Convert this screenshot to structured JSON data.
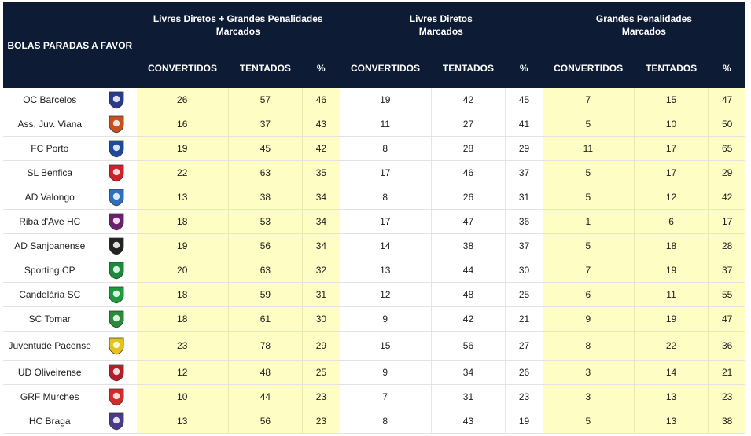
{
  "header": {
    "corner": "BOLAS PARADAS A FAVOR",
    "groups": [
      {
        "line1": "Livres Diretos + Grandes Penalidades",
        "line2": "Marcados"
      },
      {
        "line1": "Livres Diretos",
        "line2": "Marcados"
      },
      {
        "line1": "Grandes Penalidades",
        "line2": "Marcados"
      }
    ],
    "sub": {
      "conv": "CONVERTIDOS",
      "tent": "TENTADOS",
      "pct": "%"
    }
  },
  "chart_data": {
    "type": "table",
    "title": "BOLAS PARADAS A FAVOR",
    "rows": [
      {
        "team": "OC Barcelos",
        "crest": "oc-barcelos-crest",
        "color": "#2a3a8c",
        "total": [
          26,
          57,
          46
        ],
        "ld": [
          19,
          42,
          45
        ],
        "gp": [
          7,
          15,
          47
        ]
      },
      {
        "team": "Ass. Juv. Viana",
        "crest": "aj-viana-crest",
        "color": "#c8501e",
        "total": [
          16,
          37,
          43
        ],
        "ld": [
          11,
          27,
          41
        ],
        "gp": [
          5,
          10,
          50
        ]
      },
      {
        "team": "FC Porto",
        "crest": "fc-porto-crest",
        "color": "#1c4aa0",
        "total": [
          19,
          45,
          42
        ],
        "ld": [
          8,
          28,
          29
        ],
        "gp": [
          11,
          17,
          65
        ]
      },
      {
        "team": "SL Benfica",
        "crest": "sl-benfica-crest",
        "color": "#d0202a",
        "total": [
          22,
          63,
          35
        ],
        "ld": [
          17,
          46,
          37
        ],
        "gp": [
          5,
          17,
          29
        ]
      },
      {
        "team": "AD Valongo",
        "crest": "ad-valongo-crest",
        "color": "#2d6fc0",
        "total": [
          13,
          38,
          34
        ],
        "ld": [
          8,
          26,
          31
        ],
        "gp": [
          5,
          12,
          42
        ]
      },
      {
        "team": "Riba d'Ave HC",
        "crest": "riba-dave-crest",
        "color": "#6a1f6f",
        "total": [
          18,
          53,
          34
        ],
        "ld": [
          17,
          47,
          36
        ],
        "gp": [
          1,
          6,
          17
        ]
      },
      {
        "team": "AD Sanjoanense",
        "crest": "ad-sanjoanense-crest",
        "color": "#222222",
        "total": [
          19,
          56,
          34
        ],
        "ld": [
          14,
          38,
          37
        ],
        "gp": [
          5,
          18,
          28
        ]
      },
      {
        "team": "Sporting CP",
        "crest": "sporting-cp-crest",
        "color": "#1a8a3c",
        "total": [
          20,
          63,
          32
        ],
        "ld": [
          13,
          44,
          30
        ],
        "gp": [
          7,
          19,
          37
        ]
      },
      {
        "team": "Candelária SC",
        "crest": "candelaria-sc-crest",
        "color": "#1e9a3e",
        "total": [
          18,
          59,
          31
        ],
        "ld": [
          12,
          48,
          25
        ],
        "gp": [
          6,
          11,
          55
        ]
      },
      {
        "team": "SC Tomar",
        "crest": "sc-tomar-crest",
        "color": "#2a8a3a",
        "total": [
          18,
          61,
          30
        ],
        "ld": [
          9,
          42,
          21
        ],
        "gp": [
          9,
          19,
          47
        ]
      },
      {
        "team": "Juventude Pacense",
        "crest": "juventude-pacense-crest",
        "color": "#e6c21e",
        "total": [
          23,
          78,
          29
        ],
        "ld": [
          15,
          56,
          27
        ],
        "gp": [
          8,
          22,
          36
        ]
      },
      {
        "team": "UD Oliveirense",
        "crest": "ud-oliveirense-crest",
        "color": "#b41e2a",
        "total": [
          12,
          48,
          25
        ],
        "ld": [
          9,
          34,
          26
        ],
        "gp": [
          3,
          14,
          21
        ]
      },
      {
        "team": "GRF Murches",
        "crest": "grf-murches-crest",
        "color": "#d42a2a",
        "total": [
          10,
          44,
          23
        ],
        "ld": [
          7,
          31,
          23
        ],
        "gp": [
          3,
          13,
          23
        ]
      },
      {
        "team": "HC Braga",
        "crest": "hc-braga-crest",
        "color": "#4a3a8a",
        "total": [
          13,
          56,
          23
        ],
        "ld": [
          8,
          43,
          19
        ],
        "gp": [
          5,
          13,
          38
        ]
      }
    ]
  }
}
